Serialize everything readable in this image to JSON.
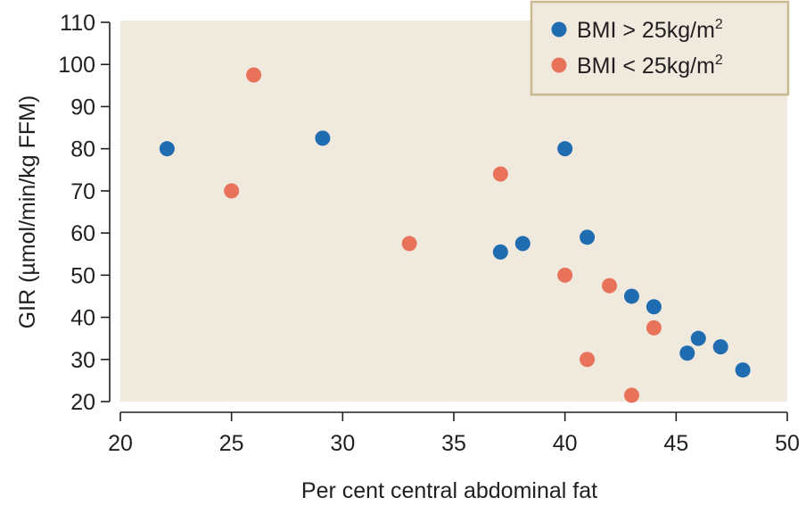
{
  "chart_data": {
    "type": "scatter",
    "xlabel": "Per cent central abdominal fat",
    "ylabel": "GIR (µmol/min/kg FFM)",
    "xlim": [
      20,
      50
    ],
    "ylim": [
      20,
      110
    ],
    "xticks": [
      "20",
      "25",
      "30",
      "35",
      "40",
      "45",
      "50"
    ],
    "yticks": [
      "20",
      "30",
      "40",
      "50",
      "60",
      "70",
      "80",
      "90",
      "100",
      "110"
    ],
    "grid": false,
    "legend_position": "top-right",
    "background": "#efe9de",
    "series": [
      {
        "name": "BMI > 25kg/m2",
        "legend_main": "BMI > 25kg/m",
        "legend_sup": "2",
        "color": "#1f6cb0",
        "points": [
          {
            "x": 22.1,
            "y": 80
          },
          {
            "x": 29.1,
            "y": 82.5
          },
          {
            "x": 40,
            "y": 80
          },
          {
            "x": 37.1,
            "y": 55.5
          },
          {
            "x": 38.1,
            "y": 57.5
          },
          {
            "x": 41,
            "y": 59
          },
          {
            "x": 43,
            "y": 45
          },
          {
            "x": 44,
            "y": 42.5
          },
          {
            "x": 45.5,
            "y": 31.5
          },
          {
            "x": 46,
            "y": 35
          },
          {
            "x": 47,
            "y": 33
          },
          {
            "x": 48,
            "y": 27.5
          }
        ]
      },
      {
        "name": "BMI < 25kg/m2",
        "legend_main": "BMI < 25kg/m",
        "legend_sup": "2",
        "color": "#e8735a",
        "points": [
          {
            "x": 26,
            "y": 97.5
          },
          {
            "x": 25,
            "y": 70
          },
          {
            "x": 33,
            "y": 57.5
          },
          {
            "x": 37.1,
            "y": 74
          },
          {
            "x": 40,
            "y": 50
          },
          {
            "x": 42,
            "y": 47.5
          },
          {
            "x": 44,
            "y": 37.5
          },
          {
            "x": 41,
            "y": 30
          },
          {
            "x": 43,
            "y": 21.5
          }
        ]
      }
    ]
  }
}
